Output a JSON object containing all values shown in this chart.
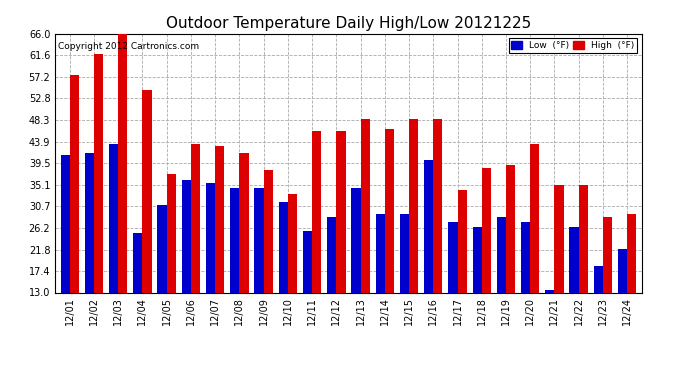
{
  "title": "Outdoor Temperature Daily High/Low 20121225",
  "copyright": "Copyright 2012 Cartronics.com",
  "legend_low": "Low  (°F)",
  "legend_high": "High  (°F)",
  "dates": [
    "12/01",
    "12/02",
    "12/03",
    "12/04",
    "12/05",
    "12/06",
    "12/07",
    "12/08",
    "12/09",
    "12/10",
    "12/11",
    "12/12",
    "12/13",
    "12/14",
    "12/15",
    "12/16",
    "12/17",
    "12/18",
    "12/19",
    "12/20",
    "12/21",
    "12/22",
    "12/23",
    "12/24"
  ],
  "high": [
    57.5,
    61.8,
    66.0,
    54.5,
    37.2,
    43.5,
    43.0,
    41.5,
    38.0,
    33.2,
    46.0,
    46.0,
    48.5,
    46.5,
    48.5,
    48.5,
    34.0,
    38.5,
    39.2,
    43.5,
    35.1,
    35.1,
    28.5,
    29.0
  ],
  "low": [
    41.2,
    41.5,
    43.5,
    25.2,
    31.0,
    36.0,
    35.5,
    34.5,
    34.5,
    31.5,
    25.5,
    28.5,
    34.5,
    29.0,
    29.0,
    40.2,
    27.5,
    26.5,
    28.5,
    27.5,
    13.5,
    26.5,
    18.5,
    22.0
  ],
  "ylim_min": 13.0,
  "ylim_max": 66.0,
  "yticks": [
    13.0,
    17.4,
    21.8,
    26.2,
    30.7,
    35.1,
    39.5,
    43.9,
    48.3,
    52.8,
    57.2,
    61.6,
    66.0
  ],
  "bar_width": 0.38,
  "low_color": "#0000cc",
  "high_color": "#dd0000",
  "bg_color": "#ffffff",
  "grid_color": "#aaaaaa",
  "title_fontsize": 11,
  "tick_fontsize": 7,
  "baseline": 13.0
}
